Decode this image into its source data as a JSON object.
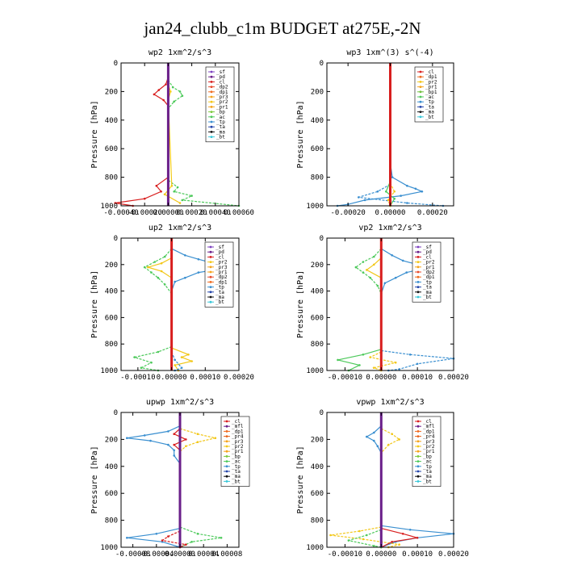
{
  "figure": {
    "title": "jan24_clubb_c1m  BUDGET at275E,-2N",
    "ylabel": "Pressure [hPa]"
  },
  "colors": {
    "zero_line_red": "#d81e1e",
    "zero_line_purple": "#6a1f8a",
    "legend_markers": {
      "sf": "#7b3fbf",
      "pd": "#6a1f8a",
      "cl": "#d81e1e",
      "dp2": "#e84a2a",
      "dp1": "#f06a1e",
      "pr1": "#f5a31a",
      "pr2": "#f2c718",
      "pr3": "#f5a31a",
      "pr4": "#e8621a",
      "bp": "#7ac93a",
      "bp1": "#6fbf3a",
      "ac": "#4cc95a",
      "tp": "#3a8fd0",
      "ta": "#2244aa",
      "ma": "#111111",
      "bt": "#37c7d8",
      "mfl": "#6a1f8a"
    }
  },
  "chart_data": [
    {
      "id": "wp2",
      "type": "line",
      "title": "wp2  1xm^2/s^3",
      "xlim": [
        -0.0004,
        0.0006
      ],
      "xticks": [
        "-0.00040",
        "-0.00020",
        "0.00000",
        "0.00020",
        "0.00040",
        "0.00060"
      ],
      "xtick_values": [
        -0.0004,
        -0.0002,
        0,
        0.0002,
        0.0004,
        0.0006
      ],
      "ylim": [
        1000,
        0
      ],
      "yticks": [
        "0",
        "200",
        "400",
        "600",
        "800",
        "1000"
      ],
      "legend": [
        "_sf",
        "_pd",
        "_cl",
        "_dp2",
        "_dp1",
        "_pr3",
        "_pr2",
        "_pr1",
        "_bp",
        "_ac",
        "_tp",
        "_ta",
        "_ma",
        "_bt"
      ],
      "series": [
        {
          "color": "#d81e1e",
          "y": [
            100,
            150,
            190,
            220,
            260,
            300,
            800,
            860,
            900,
            950,
            980,
            1000
          ],
          "x": [
            0,
            -2e-05,
            -8e-05,
            -0.00012,
            -4e-05,
            0,
            0,
            -0.0001,
            -6e-05,
            -0.0002,
            -0.00045,
            -0.0003
          ]
        },
        {
          "color": "#4cc95a",
          "y": [
            120,
            170,
            200,
            230,
            270,
            320,
            820,
            870,
            900,
            930,
            960,
            1000
          ],
          "x": [
            0,
            4e-05,
            0.0001,
            0.00012,
            5e-05,
            0,
            0,
            8e-05,
            5e-05,
            0.0002,
            0.00012,
            0.0006
          ]
        },
        {
          "color": "#f2c718",
          "y": [
            150,
            200,
            260,
            860,
            920,
            980
          ],
          "x": [
            0,
            2e-05,
            0,
            3e-05,
            -3e-05,
            0.0001
          ]
        },
        {
          "color": "#6a1f8a",
          "y": [
            0,
            1000
          ],
          "x": [
            0,
            0
          ]
        }
      ]
    },
    {
      "id": "wp3",
      "type": "line",
      "title": "wp3  1xm^(3) s^(-4)",
      "xlim": [
        -0.0003,
        0.0003
      ],
      "xticks": [
        "-0.00020",
        "0.00000",
        "0.00020"
      ],
      "xtick_values": [
        -0.0002,
        0,
        0.0002
      ],
      "ylim": [
        1000,
        0
      ],
      "yticks": [
        "0",
        "200",
        "400",
        "600",
        "800",
        "1000"
      ],
      "legend": [
        "_cl",
        "_dp1",
        "_pr2",
        "_pr1",
        "_bp1",
        "_ac",
        "_tp",
        "_ta",
        "_ma",
        "_bt"
      ],
      "series": [
        {
          "color": "#3a8fd0",
          "y": [
            700,
            800,
            860,
            880,
            900,
            930,
            960,
            990,
            1000
          ],
          "x": [
            0,
            1e-05,
            8e-05,
            0.00012,
            0.00015,
            5e-05,
            -0.00012,
            -0.0002,
            -0.00025
          ]
        },
        {
          "color": "#3a8fd0",
          "y": [
            850,
            900,
            940,
            980,
            1000
          ],
          "x": [
            0,
            -6e-05,
            -0.00015,
            8e-05,
            0.00025
          ]
        },
        {
          "color": "#4cc95a",
          "y": [
            830,
            900,
            950,
            1000
          ],
          "x": [
            0,
            -2e-05,
            2e-05,
            0
          ]
        },
        {
          "color": "#f2c718",
          "y": [
            840,
            900,
            960,
            1000
          ],
          "x": [
            0,
            2e-05,
            -1e-05,
            0
          ]
        },
        {
          "color": "#d81e1e",
          "y": [
            0,
            1000
          ],
          "x": [
            0,
            0
          ]
        }
      ]
    },
    {
      "id": "up2",
      "type": "line",
      "title": "up2  1xm^2/s^3",
      "xlim": [
        -0.00015,
        0.0002
      ],
      "xticks": [
        "-0.00010",
        "0.00000",
        "0.00010",
        "0.00020"
      ],
      "xtick_values": [
        -0.0001,
        0,
        0.0001,
        0.0002
      ],
      "ylim": [
        1000,
        0
      ],
      "yticks": [
        "0",
        "200",
        "400",
        "600",
        "800",
        "1000"
      ],
      "legend": [
        "_sf",
        "_pd",
        "_cl",
        "_pr2",
        "_pr3",
        "_pr1",
        "_dp2",
        "_dp1",
        "_tp",
        "_ta",
        "_ma",
        "_bt"
      ],
      "series": [
        {
          "color": "#3a8fd0",
          "y": [
            80,
            130,
            160,
            200,
            220,
            260,
            300,
            330,
            400,
            500
          ],
          "x": [
            0,
            4e-05,
            8e-05,
            0.00014,
            0.00018,
            8e-05,
            4e-05,
            1e-05,
            0,
            0
          ]
        },
        {
          "color": "#4cc95a",
          "y": [
            80,
            140,
            180,
            220,
            260,
            300,
            350,
            420
          ],
          "x": [
            0,
            -2e-05,
            -5e-05,
            -8e-05,
            -6e-05,
            -4e-05,
            -2e-05,
            0
          ]
        },
        {
          "color": "#f2c718",
          "y": [
            150,
            190,
            220,
            250,
            300
          ],
          "x": [
            0,
            -3e-05,
            -7e-05,
            -3e-05,
            0
          ]
        },
        {
          "color": "#4cc95a",
          "y": [
            820,
            860,
            900,
            940,
            980,
            1000
          ],
          "x": [
            0,
            -4e-05,
            -0.00011,
            -6e-05,
            -9e-05,
            -4e-05
          ]
        },
        {
          "color": "#f2c718",
          "y": [
            830,
            880,
            900,
            930,
            960,
            1000
          ],
          "x": [
            0,
            5e-05,
            3e-05,
            6e-05,
            1e-05,
            2e-05
          ]
        },
        {
          "color": "#3a8fd0",
          "y": [
            860,
            920,
            980,
            1000
          ],
          "x": [
            0,
            1e-05,
            3e-05,
            1e-05
          ]
        },
        {
          "color": "#d81e1e",
          "y": [
            0,
            1000
          ],
          "x": [
            0,
            0
          ]
        }
      ]
    },
    {
      "id": "vp2",
      "type": "line",
      "title": "vp2  1xm^2/s^3",
      "xlim": [
        -0.00015,
        0.0002
      ],
      "xticks": [
        "-0.00010",
        "0.00000",
        "0.00010",
        "0.00020"
      ],
      "xtick_values": [
        -0.0001,
        0,
        0.0001,
        0.0002
      ],
      "ylim": [
        1000,
        0
      ],
      "yticks": [
        "0",
        "200",
        "400",
        "600",
        "800",
        "1000"
      ],
      "legend": [
        "_sf",
        "_pd",
        "_cl",
        "_pr2",
        "_pr1",
        "_dp2",
        "_dp1",
        "_tp",
        "_ta",
        "_ma",
        "_bt"
      ],
      "series": [
        {
          "color": "#3a8fd0",
          "y": [
            80,
            130,
            170,
            200,
            230,
            260,
            300,
            340,
            420
          ],
          "x": [
            0,
            3e-05,
            6e-05,
            0.0001,
            0.00012,
            7e-05,
            4e-05,
            1e-05,
            0
          ]
        },
        {
          "color": "#4cc95a",
          "y": [
            80,
            140,
            180,
            220,
            260,
            300,
            360,
            420
          ],
          "x": [
            0,
            -2e-05,
            -5e-05,
            -7e-05,
            -5e-05,
            -3e-05,
            -1e-05,
            0
          ]
        },
        {
          "color": "#f2c718",
          "y": [
            150,
            200,
            240,
            300
          ],
          "x": [
            0,
            -2e-05,
            -4e-05,
            0
          ]
        },
        {
          "color": "#3a8fd0",
          "y": [
            850,
            880,
            910,
            950,
            990,
            1000
          ],
          "x": [
            0,
            8e-05,
            0.0002,
            0.0001,
            5e-05,
            2e-05
          ]
        },
        {
          "color": "#4cc95a",
          "y": [
            840,
            880,
            920,
            960,
            1000
          ],
          "x": [
            0,
            -5e-05,
            -0.00012,
            -6e-05,
            -9e-05
          ]
        },
        {
          "color": "#f2c718",
          "y": [
            860,
            900,
            940,
            980,
            1000
          ],
          "x": [
            0,
            -3e-05,
            4e-05,
            -2e-05,
            0
          ]
        },
        {
          "color": "#d81e1e",
          "y": [
            0,
            1000
          ],
          "x": [
            0,
            0
          ]
        }
      ]
    },
    {
      "id": "upwp",
      "type": "line",
      "title": "upwp  1xm^2/s^3",
      "xlim": [
        -0.0001,
        0.0001
      ],
      "xticks": [
        "-0.00008",
        "-0.00004",
        "0.00000",
        "0.00004",
        "0.00008"
      ],
      "xtick_values": [
        -8e-05,
        -4e-05,
        0,
        4e-05,
        8e-05
      ],
      "ylim": [
        1000,
        0
      ],
      "yticks": [
        "0",
        "200",
        "400",
        "600",
        "800",
        "1000"
      ],
      "legend": [
        "_cl",
        "_mfl",
        "_dp1",
        "_pr4",
        "_pr3",
        "_pr2",
        "_pr1",
        "_bp",
        "_ac",
        "_tp",
        "_ta",
        "_ma",
        "_bt"
      ],
      "series": [
        {
          "color": "#3a8fd0",
          "y": [
            100,
            140,
            170,
            190,
            210,
            240,
            280,
            320,
            380,
            420
          ],
          "x": [
            0,
            -2e-05,
            -6e-05,
            -9e-05,
            -5e-05,
            -2e-05,
            -1e-05,
            -1e-05,
            0,
            0
          ]
        },
        {
          "color": "#f2c718",
          "y": [
            120,
            160,
            190,
            220,
            250,
            290
          ],
          "x": [
            0,
            3e-05,
            6e-05,
            3e-05,
            1e-05,
            0
          ]
        },
        {
          "color": "#d81e1e",
          "y": [
            120,
            160,
            200,
            240,
            280
          ],
          "x": [
            0,
            -1e-05,
            1e-05,
            -1e-05,
            0
          ]
        },
        {
          "color": "#4cc95a",
          "y": [
            850,
            900,
            930,
            960,
            1000
          ],
          "x": [
            0,
            3e-05,
            7e-05,
            2e-05,
            0
          ]
        },
        {
          "color": "#3a8fd0",
          "y": [
            860,
            900,
            930,
            960,
            1000
          ],
          "x": [
            0,
            -4e-05,
            -9e-05,
            -3e-05,
            0
          ]
        },
        {
          "color": "#d81e1e",
          "y": [
            880,
            920,
            950,
            980,
            1000
          ],
          "x": [
            0,
            -2e-05,
            -3e-05,
            1e-05,
            0
          ]
        },
        {
          "color": "#6a1f8a",
          "y": [
            0,
            1000
          ],
          "x": [
            0,
            0
          ]
        }
      ]
    },
    {
      "id": "vpwp",
      "type": "line",
      "title": "vpwp  1xm^2/s^3",
      "xlim": [
        -0.00015,
        0.0002
      ],
      "xticks": [
        "-0.00010",
        "0.00000",
        "0.00010",
        "0.00020"
      ],
      "xtick_values": [
        -0.0001,
        0,
        0.0001,
        0.0002
      ],
      "ylim": [
        1000,
        0
      ],
      "yticks": [
        "0",
        "200",
        "400",
        "600",
        "800",
        "1000"
      ],
      "legend": [
        "_cl",
        "_mfl",
        "_dp1",
        "_pr4",
        "_pr3",
        "_pr2",
        "_pr1",
        "_bp",
        "_ac",
        "_tp",
        "_ta",
        "_ma",
        "_bt"
      ],
      "series": [
        {
          "color": "#3a8fd0",
          "y": [
            100,
            150,
            180,
            210,
            250,
            300
          ],
          "x": [
            0,
            -2e-05,
            -4e-05,
            -2e-05,
            -1e-05,
            0
          ]
        },
        {
          "color": "#f2c718",
          "y": [
            120,
            160,
            200,
            240,
            300
          ],
          "x": [
            0,
            3e-05,
            5e-05,
            2e-05,
            0
          ]
        },
        {
          "color": "#3a8fd0",
          "y": [
            840,
            870,
            900,
            930,
            960,
            1000
          ],
          "x": [
            0,
            8e-05,
            0.0002,
            0.0001,
            4e-05,
            0
          ]
        },
        {
          "color": "#f2c718",
          "y": [
            850,
            880,
            910,
            940,
            980,
            1000
          ],
          "x": [
            0,
            -6e-05,
            -0.00014,
            -5e-05,
            5e-05,
            2e-05
          ]
        },
        {
          "color": "#d81e1e",
          "y": [
            860,
            900,
            930,
            960,
            1000
          ],
          "x": [
            0,
            6e-05,
            0.0001,
            3e-05,
            0
          ]
        },
        {
          "color": "#4cc95a",
          "y": [
            870,
            910,
            950,
            990,
            1000
          ],
          "x": [
            0,
            -4e-05,
            -9e-05,
            -2e-05,
            0
          ]
        },
        {
          "color": "#6a1f8a",
          "y": [
            0,
            1000
          ],
          "x": [
            0,
            0
          ]
        }
      ]
    }
  ]
}
